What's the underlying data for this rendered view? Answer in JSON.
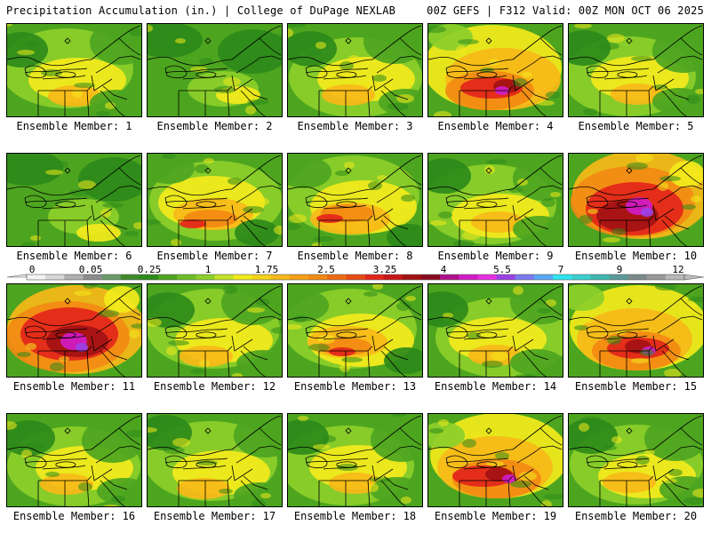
{
  "header": {
    "left": "Precipitation Accumulation (in.) | College of DuPage NEXLAB",
    "right": "00Z GEFS | F312 Valid: 00Z MON OCT 06 2025"
  },
  "colors": {
    "green_dark": "#2d8a1a",
    "green_mid": "#4da51f",
    "green_light": "#8ccf2a",
    "yellow": "#f3ea1c",
    "orange_light": "#f7b818",
    "orange": "#f28a13",
    "red": "#e3261a",
    "dark_red": "#a31212",
    "magenta": "#d11cc7",
    "purple": "#9b42e6",
    "cyan": "#2ee6f0"
  },
  "colorbar": {
    "labels": [
      "0",
      "0.05",
      "0.25",
      "1",
      "1.75",
      "2.5",
      "3.25",
      "4",
      "5.5",
      "7",
      "9",
      "12"
    ],
    "colors": [
      "#f4f4f4",
      "#d8d8d8",
      "#b0b0b0",
      "#8c8c8c",
      "#6a9a6a",
      "#3e8a2a",
      "#2d8a1a",
      "#4da51f",
      "#6bbd25",
      "#8ccf2a",
      "#c2e226",
      "#f3ea1c",
      "#f7d21a",
      "#f7b818",
      "#f5a016",
      "#f28a13",
      "#ee6a12",
      "#e84a14",
      "#e3261a",
      "#c81616",
      "#a31212",
      "#8a0a1e",
      "#b00f8a",
      "#d11cc7",
      "#e630e0",
      "#9b42e6",
      "#7a7af0",
      "#5aa8f4",
      "#2ee6f0",
      "#3ccfd0",
      "#3fb8b0",
      "#5a9a9a",
      "#7a8a8a",
      "#9a9a9a",
      "#b8b8b8"
    ]
  },
  "panels": [
    {
      "label": "Ensemble Member: 1",
      "intensity": 2
    },
    {
      "label": "Ensemble Member: 2",
      "intensity": 1
    },
    {
      "label": "Ensemble Member: 3",
      "intensity": 2
    },
    {
      "label": "Ensemble Member: 4",
      "intensity": 4
    },
    {
      "label": "Ensemble Member: 5",
      "intensity": 2
    },
    {
      "label": "Ensemble Member: 6",
      "intensity": 1
    },
    {
      "label": "Ensemble Member: 7",
      "intensity": 3
    },
    {
      "label": "Ensemble Member: 8",
      "intensity": 3
    },
    {
      "label": "Ensemble Member: 9",
      "intensity": 2
    },
    {
      "label": "Ensemble Member: 10",
      "intensity": 5
    },
    {
      "label": "Ensemble Member: 11",
      "intensity": 5
    },
    {
      "label": "Ensemble Member: 12",
      "intensity": 2
    },
    {
      "label": "Ensemble Member: 13",
      "intensity": 3
    },
    {
      "label": "Ensemble Member: 14",
      "intensity": 2
    },
    {
      "label": "Ensemble Member: 15",
      "intensity": 4
    },
    {
      "label": "Ensemble Member: 16",
      "intensity": 2
    },
    {
      "label": "Ensemble Member: 17",
      "intensity": 2
    },
    {
      "label": "Ensemble Member: 18",
      "intensity": 2
    },
    {
      "label": "Ensemble Member: 19",
      "intensity": 4
    },
    {
      "label": "Ensemble Member: 20",
      "intensity": 2
    }
  ]
}
